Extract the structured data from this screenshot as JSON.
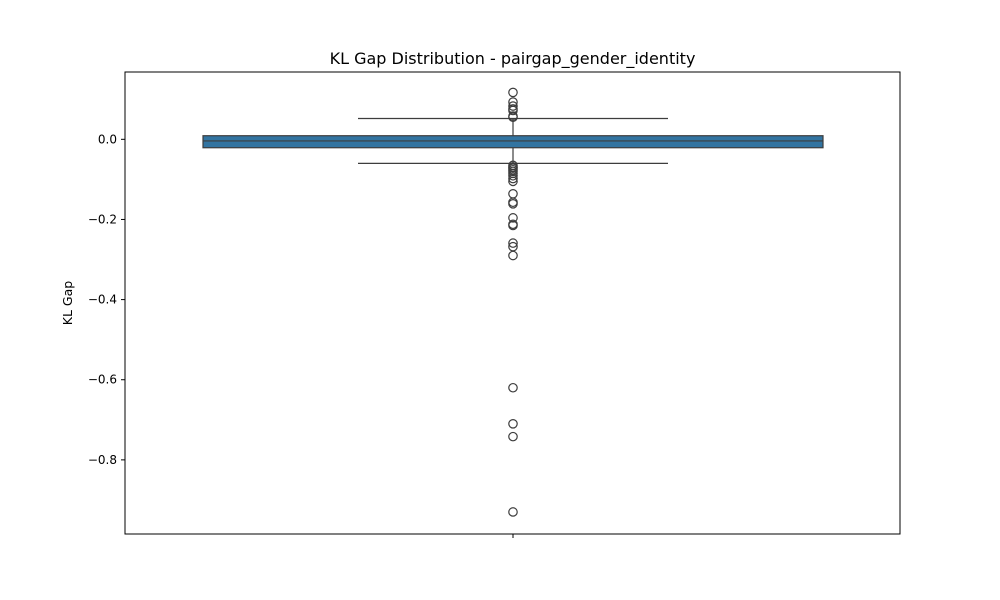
{
  "chart_data": {
    "type": "box",
    "title": "KL Gap Distribution - pairgap_gender_identity",
    "ylabel": "KL Gap",
    "xlabel": "",
    "ylim": [
      -0.985,
      0.168
    ],
    "yticks": [
      0.0,
      -0.2,
      -0.4,
      -0.6,
      -0.8
    ],
    "ytick_labels": [
      "0.0",
      "−0.2",
      "−0.4",
      "−0.6",
      "−0.8"
    ],
    "grid": false,
    "box": {
      "q1": -0.021,
      "median": -0.004,
      "q3": 0.009,
      "whisker_low": -0.06,
      "whisker_high": 0.052,
      "color": "#3274a1",
      "edge_color": "#3d3d3d"
    },
    "outliers": [
      0.117,
      0.093,
      0.083,
      0.076,
      0.072,
      0.058,
      0.055,
      -0.065,
      -0.069,
      -0.072,
      -0.076,
      -0.08,
      -0.085,
      -0.091,
      -0.098,
      -0.105,
      -0.136,
      -0.157,
      -0.161,
      -0.196,
      -0.212,
      -0.215,
      -0.259,
      -0.268,
      -0.29,
      -0.62,
      -0.71,
      -0.742,
      -0.93
    ]
  }
}
